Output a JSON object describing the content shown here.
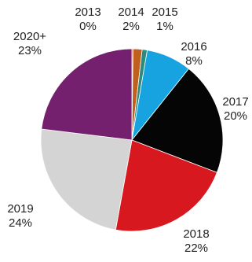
{
  "chart_data": {
    "type": "pie",
    "start_year_note": "",
    "slices": [
      {
        "label": "2013",
        "value_label": "0%",
        "value": 0.2,
        "color": "#c0504d"
      },
      {
        "label": "2014",
        "value_label": "2%",
        "value": 1.6,
        "color": "#c0601f"
      },
      {
        "label": "2015",
        "value_label": "1%",
        "value": 0.9,
        "color": "#2e8b7a"
      },
      {
        "label": "2016",
        "value_label": "8%",
        "value": 8,
        "color": "#16a3e0"
      },
      {
        "label": "2017",
        "value_label": "20%",
        "value": 20,
        "color": "#050505"
      },
      {
        "label": "2018",
        "value_label": "22%",
        "value": 22,
        "color": "#d8181f"
      },
      {
        "label": "2019",
        "value_label": "24%",
        "value": 24,
        "color": "#d4d4d4"
      },
      {
        "label": "2020+",
        "value_label": "23%",
        "value": 23,
        "color": "#74206e"
      }
    ]
  }
}
